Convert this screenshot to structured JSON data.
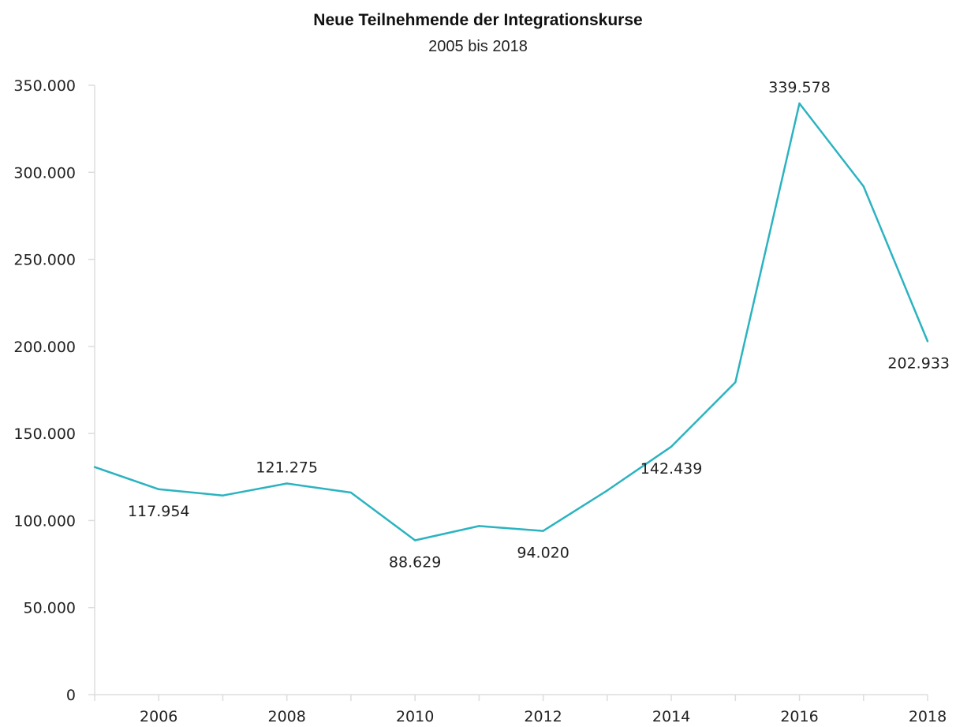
{
  "chart_data": {
    "type": "line",
    "title": "Neue Teilnehmende der Integrationskurse",
    "subtitle": "2005 bis 2018",
    "xlabel": "",
    "ylabel": "",
    "ylim": [
      0,
      350000
    ],
    "xlim": [
      2005,
      2018
    ],
    "y_ticks": [
      {
        "value": 0,
        "label": "0"
      },
      {
        "value": 50000,
        "label": "50.000"
      },
      {
        "value": 100000,
        "label": "100.000"
      },
      {
        "value": 150000,
        "label": "150.000"
      },
      {
        "value": 200000,
        "label": "200.000"
      },
      {
        "value": 250000,
        "label": "250.000"
      },
      {
        "value": 300000,
        "label": "300.000"
      },
      {
        "value": 350000,
        "label": "350.000"
      }
    ],
    "x_ticks": [
      {
        "value": 2006,
        "label": "2006"
      },
      {
        "value": 2008,
        "label": "2008"
      },
      {
        "value": 2010,
        "label": "2010"
      },
      {
        "value": 2012,
        "label": "2012"
      },
      {
        "value": 2014,
        "label": "2014"
      },
      {
        "value": 2016,
        "label": "2016"
      },
      {
        "value": 2018,
        "label": "2018"
      }
    ],
    "x_minor_ticks": [
      2005,
      2007,
      2009,
      2011,
      2013,
      2015,
      2017
    ],
    "grid": false,
    "series": [
      {
        "color": "#2bb3c0",
        "points": [
          {
            "x": 2005,
            "y": 130728
          },
          {
            "x": 2006,
            "y": 117954
          },
          {
            "x": 2007,
            "y": 114365
          },
          {
            "x": 2008,
            "y": 121275
          },
          {
            "x": 2009,
            "y": 116052
          },
          {
            "x": 2010,
            "y": 88629
          },
          {
            "x": 2011,
            "y": 96846
          },
          {
            "x": 2012,
            "y": 94020
          },
          {
            "x": 2013,
            "y": 117251
          },
          {
            "x": 2014,
            "y": 142439
          },
          {
            "x": 2015,
            "y": 179398
          },
          {
            "x": 2016,
            "y": 339578
          },
          {
            "x": 2017,
            "y": 291911
          },
          {
            "x": 2018,
            "y": 202933
          }
        ]
      }
    ],
    "data_labels": [
      {
        "x": 2006,
        "label": "117.954",
        "position": "below"
      },
      {
        "x": 2008,
        "label": "121.275",
        "position": "above"
      },
      {
        "x": 2010,
        "label": "88.629",
        "position": "below"
      },
      {
        "x": 2012,
        "label": "94.020",
        "position": "below"
      },
      {
        "x": 2014,
        "label": "142.439",
        "position": "below"
      },
      {
        "x": 2016,
        "label": "339.578",
        "position": "above"
      },
      {
        "x": 2018,
        "label": "202.933",
        "position": "below"
      }
    ]
  },
  "colors": {
    "line": "#2bb3c0",
    "axis": "#dddddd",
    "text": "#222222"
  }
}
